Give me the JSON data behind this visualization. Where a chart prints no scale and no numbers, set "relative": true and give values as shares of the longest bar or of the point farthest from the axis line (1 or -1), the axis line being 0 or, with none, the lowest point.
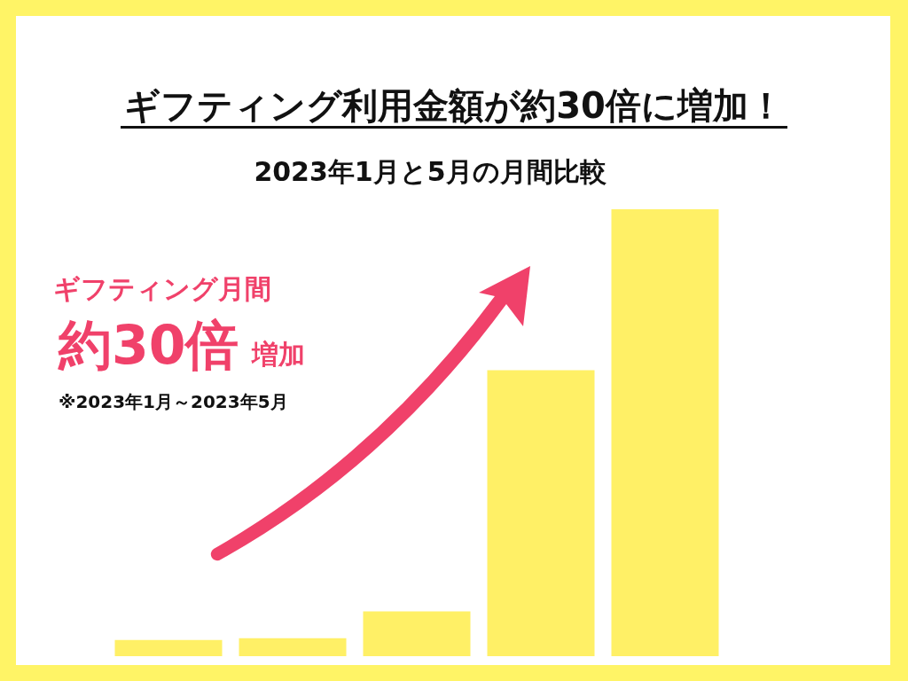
{
  "chart_data": {
    "type": "bar",
    "title": "ギフティング利用金額が約30倍に増加！",
    "subtitle": "2023年1月と5月の月間比較",
    "categories": [
      null,
      null,
      null,
      null,
      null
    ],
    "values": [
      0.036,
      0.04,
      0.1,
      0.64,
      1
    ],
    "color": "#fff066",
    "relative": true,
    "annotations": [
      "ギフティング月間",
      "約30倍",
      "増加",
      "※2023年1月～2023年5月"
    ]
  }
}
